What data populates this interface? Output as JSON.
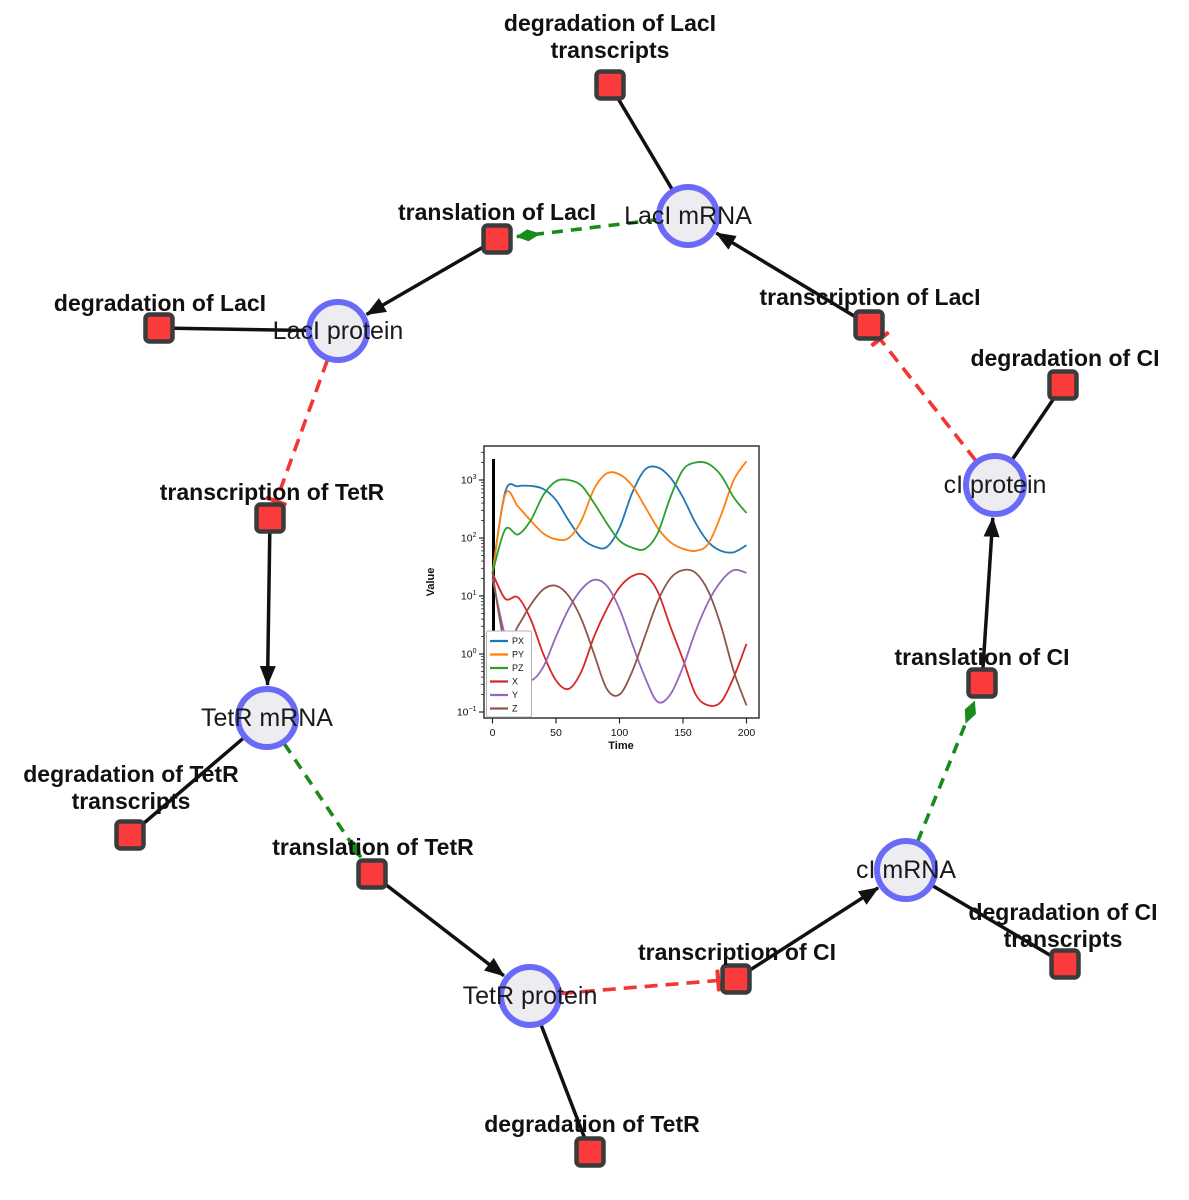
{
  "network": {
    "species": [
      {
        "id": "laci-mrna",
        "label": "LacI mRNA"
      },
      {
        "id": "laci-protein",
        "label": "LacI protein"
      },
      {
        "id": "tetr-mrna",
        "label": "TetR mRNA"
      },
      {
        "id": "tetr-protein",
        "label": "TetR protein"
      },
      {
        "id": "ci-mrna",
        "label": "cI mRNA"
      },
      {
        "id": "ci-protein",
        "label": "cI protein"
      }
    ],
    "reactions": [
      {
        "id": "degradation-of-laci-transcripts",
        "label": "degradation of LacI transcripts",
        "lines": [
          "degradation of LacI",
          "transcripts"
        ]
      },
      {
        "id": "translation-of-laci",
        "label": "translation of LacI",
        "lines": [
          "translation of LacI"
        ]
      },
      {
        "id": "degradation-of-laci",
        "label": "degradation of LacI",
        "lines": [
          "degradation of LacI"
        ]
      },
      {
        "id": "transcription-of-tetr",
        "label": "transcription of TetR",
        "lines": [
          "transcription of TetR"
        ]
      },
      {
        "id": "degradation-of-tetr-transcripts",
        "label": "degradation of TetR transcripts",
        "lines": [
          "degradation of TetR",
          "transcripts"
        ]
      },
      {
        "id": "translation-of-tetr",
        "label": "translation of TetR",
        "lines": [
          "translation of TetR"
        ]
      },
      {
        "id": "degradation-of-tetr",
        "label": "degradation of TetR",
        "lines": [
          "degradation of TetR"
        ]
      },
      {
        "id": "transcription-of-ci",
        "label": "transcription of CI",
        "lines": [
          "transcription of CI"
        ]
      },
      {
        "id": "degradation-of-ci-transcripts",
        "label": "degradation of CI transcripts",
        "lines": [
          "degradation of CI",
          "transcripts"
        ]
      },
      {
        "id": "translation-of-ci",
        "label": "translation of CI",
        "lines": [
          "translation of CI"
        ]
      },
      {
        "id": "degradation-of-ci",
        "label": "degradation of CI",
        "lines": [
          "degradation of CI"
        ]
      },
      {
        "id": "transcription-of-laci",
        "label": "transcription of LacI",
        "lines": [
          "transcription of LacI"
        ]
      }
    ],
    "colors": {
      "species_fill": "#ececf1",
      "species_stroke": "#6a6af8",
      "reaction_fill": "#fa3b3b",
      "reaction_stroke": "#3b3b3b",
      "edge_black": "#111111",
      "activation_green": "#1a8a1a",
      "inhibition_red": "#f23535"
    }
  },
  "chart_data": {
    "type": "line",
    "title": "",
    "xlabel": "Time",
    "ylabel": "Value",
    "x_scale": "linear",
    "y_scale": "log",
    "xlim": [
      0,
      200
    ],
    "ylim_exponents": [
      -1,
      3.6
    ],
    "x_ticks": [
      0,
      50,
      100,
      150,
      200
    ],
    "y_tick_exponents": [
      -1,
      0,
      1,
      2,
      3
    ],
    "legend_position": "lower left",
    "t0_marker": 0,
    "x": [
      0,
      10,
      20,
      30,
      40,
      50,
      60,
      70,
      80,
      90,
      100,
      110,
      120,
      130,
      140,
      150,
      160,
      170,
      180,
      190,
      200
    ],
    "series": [
      {
        "name": "PX",
        "color": "#1f77b4",
        "values": [
          25,
          620,
          780,
          790,
          700,
          450,
          200,
          100,
          72,
          70,
          150,
          600,
          1500,
          1650,
          1100,
          500,
          180,
          85,
          60,
          57,
          75
        ]
      },
      {
        "name": "PY",
        "color": "#ff7f0e",
        "values": [
          25,
          560,
          350,
          200,
          120,
          95,
          100,
          200,
          700,
          1300,
          1250,
          800,
          350,
          150,
          85,
          65,
          60,
          80,
          250,
          1000,
          2100
        ]
      },
      {
        "name": "PZ",
        "color": "#2ca02c",
        "values": [
          25,
          140,
          115,
          200,
          550,
          950,
          1000,
          800,
          400,
          180,
          90,
          68,
          65,
          120,
          500,
          1500,
          2000,
          1900,
          1200,
          500,
          270
        ]
      },
      {
        "name": "X",
        "color": "#d62728",
        "values": [
          25,
          9,
          9.5,
          4,
          1,
          0.35,
          0.25,
          0.5,
          2,
          6,
          14,
          22,
          23,
          12,
          3,
          0.8,
          0.2,
          0.13,
          0.15,
          0.4,
          1.5
        ]
      },
      {
        "name": "Y",
        "color": "#9467bd",
        "values": [
          20,
          2,
          0.5,
          0.35,
          0.6,
          2,
          6,
          13,
          19,
          15,
          6,
          1.5,
          0.4,
          0.15,
          0.2,
          0.6,
          2.5,
          8,
          18,
          28,
          25
        ]
      },
      {
        "name": "Z",
        "color": "#8c564b",
        "values": [
          25,
          1.5,
          3,
          7,
          13,
          15,
          10,
          4,
          1,
          0.25,
          0.2,
          0.5,
          2,
          8,
          20,
          28,
          25,
          12,
          3,
          0.5,
          0.13
        ]
      }
    ]
  }
}
